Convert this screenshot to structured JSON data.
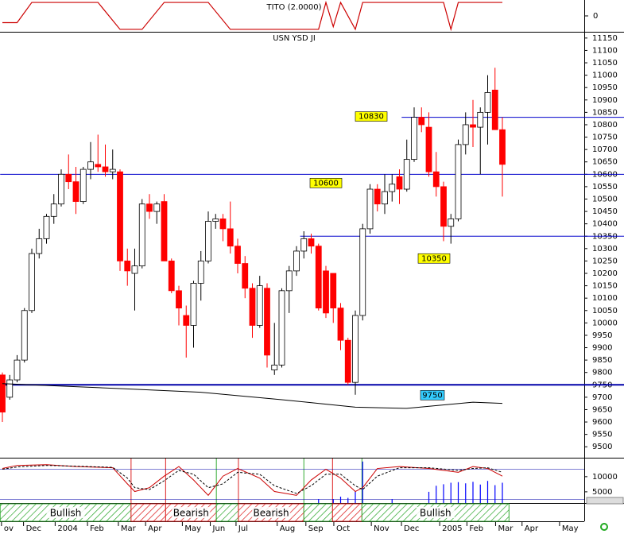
{
  "chart_data": [
    {
      "type": "line",
      "title": "TITO (2.0000)",
      "x": [
        0,
        2,
        4,
        13,
        16,
        19,
        22,
        28,
        31,
        43,
        44,
        45,
        46,
        48,
        49,
        60,
        61,
        62,
        68
      ],
      "series": [
        {
          "color": "#cc0000",
          "values": [
            -0.5,
            -0.5,
            1,
            1,
            -1,
            -1,
            1,
            1,
            -1,
            -1,
            1,
            -0.8,
            1,
            -1,
            1,
            1,
            -1,
            1,
            1
          ]
        }
      ],
      "ylim": [
        -1.18,
        1.18
      ],
      "yticks": [
        0
      ]
    },
    {
      "type": "candlestick",
      "title": "USN YSD JI",
      "open": [
        9790,
        9700,
        9770,
        9850,
        10050,
        10280,
        10340,
        10430,
        10480,
        10600,
        10570,
        10490,
        10620,
        10640,
        10630,
        10610,
        10610,
        10250,
        10200,
        10230,
        10480,
        10450,
        10490,
        10250,
        10130,
        10030,
        9990,
        10160,
        10250,
        10410,
        10420,
        10380,
        10310,
        10240,
        10140,
        9990,
        10140,
        9810,
        9830,
        10130,
        10210,
        10290,
        10340,
        10310,
        10210,
        10200,
        10060,
        9930,
        9760,
        10030,
        10380,
        10540,
        10480,
        10530,
        10590,
        10540,
        10660,
        10830,
        10790,
        10610,
        10550,
        10390,
        10420,
        10720,
        10800,
        10790,
        10850,
        10940,
        10780
      ],
      "high": [
        9800,
        9790,
        9870,
        10060,
        10300,
        10380,
        10440,
        10520,
        10620,
        10680,
        10630,
        10630,
        10730,
        10760,
        10720,
        10700,
        10620,
        10300,
        10300,
        10500,
        10520,
        10490,
        10520,
        10260,
        10150,
        10070,
        10170,
        10290,
        10450,
        10440,
        10440,
        10490,
        10340,
        10270,
        10160,
        10190,
        10160,
        10000,
        10140,
        10230,
        10310,
        10370,
        10360,
        10320,
        10230,
        10200,
        10080,
        9940,
        10050,
        10400,
        10560,
        10560,
        10600,
        10600,
        10620,
        10740,
        10870,
        10870,
        10850,
        10690,
        10570,
        10440,
        10740,
        10850,
        10900,
        10870,
        11000,
        11030,
        10830
      ],
      "low": [
        9600,
        9690,
        9760,
        9840,
        10040,
        10260,
        10320,
        10400,
        10470,
        10540,
        10440,
        10480,
        10580,
        10610,
        10590,
        10580,
        10210,
        10150,
        10050,
        10220,
        10420,
        10400,
        10260,
        10120,
        9990,
        9860,
        9900,
        10090,
        10240,
        10380,
        10330,
        10280,
        10200,
        10100,
        9940,
        9980,
        9820,
        9790,
        9820,
        10040,
        10190,
        10260,
        10280,
        10050,
        10020,
        10000,
        9890,
        9750,
        9710,
        10010,
        10360,
        10450,
        10440,
        10490,
        10480,
        10530,
        10650,
        10770,
        10590,
        10510,
        10330,
        10320,
        10410,
        10680,
        10710,
        10600,
        10720,
        10780,
        10510
      ],
      "close": [
        9640,
        9770,
        9850,
        10050,
        10280,
        10340,
        10430,
        10480,
        10600,
        10570,
        10490,
        10620,
        10650,
        10630,
        10610,
        10620,
        10250,
        10210,
        10230,
        10480,
        10450,
        10480,
        10250,
        10130,
        10060,
        9990,
        10160,
        10250,
        10410,
        10420,
        10380,
        10310,
        10240,
        10140,
        9990,
        10150,
        9870,
        9830,
        10130,
        10210,
        10290,
        10340,
        10310,
        10060,
        10040,
        10060,
        9930,
        9760,
        10030,
        10380,
        10540,
        10480,
        10530,
        10560,
        10540,
        10660,
        10830,
        10800,
        10610,
        10550,
        10390,
        10420,
        10720,
        10800,
        10790,
        10850,
        10930,
        10780,
        10640
      ],
      "up_color": "#ffffff",
      "down_color": "#ff0000",
      "ylim": [
        9443,
        11172
      ],
      "yticks": [
        9500,
        9550,
        9600,
        9650,
        9700,
        9750,
        9800,
        9850,
        9900,
        9950,
        10000,
        10050,
        10100,
        10150,
        10200,
        10250,
        10300,
        10350,
        10400,
        10450,
        10500,
        10550,
        10600,
        10650,
        10700,
        10750,
        10800,
        10850,
        10900,
        10950,
        11000,
        11050,
        11100,
        11150
      ],
      "overlay": {
        "x": [
          0,
          16,
          27,
          38,
          48,
          55,
          64,
          68
        ],
        "values": [
          9755,
          9735,
          9720,
          9690,
          9660,
          9655,
          9680,
          9675
        ],
        "color": "#000000"
      },
      "levels": [
        {
          "value": 10830,
          "start": 54.3,
          "color": "#0000cc",
          "label_color": "#ffff00"
        },
        {
          "value": 10600,
          "start": -0.3,
          "color": "#0000cc",
          "label_color": "#ffff00"
        },
        {
          "value": 10350,
          "start": 40.5,
          "color": "#0000cc",
          "label_color": "#ffff00"
        },
        {
          "value": 9750,
          "start": -0.3,
          "color": "#0000aa",
          "label_color": "#33ccff"
        }
      ],
      "signals": [
        {
          "start": -0.3,
          "end": 17.5,
          "label": "Bullish",
          "color": "#33aa33"
        },
        {
          "start": 17.5,
          "end": 22.2,
          "label": null,
          "color": "#dd2222"
        },
        {
          "start": 22.2,
          "end": 29.1,
          "label": "Bearish",
          "color": "#dd2222"
        },
        {
          "start": 29.1,
          "end": 32.1,
          "label": null,
          "color": "#33aa33"
        },
        {
          "start": 32.1,
          "end": 41,
          "label": "Bearish",
          "color": "#dd2222"
        },
        {
          "start": 41,
          "end": 44.9,
          "label": null,
          "color": "#33aa33"
        },
        {
          "start": 44.9,
          "end": 48.9,
          "label": null,
          "color": "#dd2222"
        },
        {
          "start": 48.9,
          "end": 68.9,
          "label": "Bullish",
          "color": "#33aa33"
        }
      ],
      "x_labels": [
        "ov",
        "Dec",
        "2004",
        "Feb",
        "Mar",
        "Apr",
        "May",
        "Jun",
        "Jul",
        "Aug",
        "Sep",
        "Oct",
        "Nov",
        "Dec",
        "2005",
        "Feb",
        "Mar",
        "Apr",
        "May"
      ],
      "x_label_positions": [
        0.2,
        3.2,
        7.5,
        11.9,
        16.1,
        19.8,
        24.8,
        28.6,
        32.1,
        37.7,
        41.6,
        45.4,
        50.5,
        54.6,
        59.8,
        63.5,
        67.4,
        71,
        76.1
      ]
    },
    {
      "type": "stochastic",
      "x": [
        0,
        2,
        6,
        10,
        15,
        17,
        18,
        20,
        22,
        24,
        26,
        28,
        30,
        32,
        35,
        37,
        40,
        42,
        44,
        46,
        48,
        49,
        51,
        54,
        58,
        62,
        64,
        66,
        68
      ],
      "series": [
        {
          "color": "#cc0000",
          "values": [
            80,
            88,
            90,
            85,
            82,
            40,
            20,
            30,
            60,
            85,
            50,
            10,
            60,
            80,
            55,
            20,
            10,
            50,
            78,
            55,
            20,
            30,
            80,
            85,
            80,
            70,
            85,
            80,
            60
          ]
        },
        {
          "color": "#000000",
          "dash": true,
          "values": [
            78,
            84,
            88,
            86,
            83,
            55,
            30,
            25,
            48,
            75,
            65,
            30,
            40,
            70,
            65,
            35,
            15,
            35,
            65,
            65,
            35,
            25,
            60,
            82,
            82,
            75,
            80,
            82,
            70
          ]
        }
      ],
      "ylim": [
        -10,
        106
      ],
      "volume": {
        "x": [
          43,
          45,
          46,
          47,
          48,
          49,
          53,
          58,
          59,
          60,
          61,
          62,
          63,
          64,
          65,
          66,
          67,
          68
        ],
        "values": [
          2600,
          2600,
          3400,
          3000,
          5200,
          15000,
          2600,
          5000,
          7000,
          7500,
          8000,
          8200,
          7800,
          8300,
          7400,
          8600,
          7200,
          8000
        ],
        "color": "#0000ff",
        "ylim": [
          1300,
          16000
        ],
        "yticks": [
          5000,
          10000
        ]
      }
    }
  ]
}
